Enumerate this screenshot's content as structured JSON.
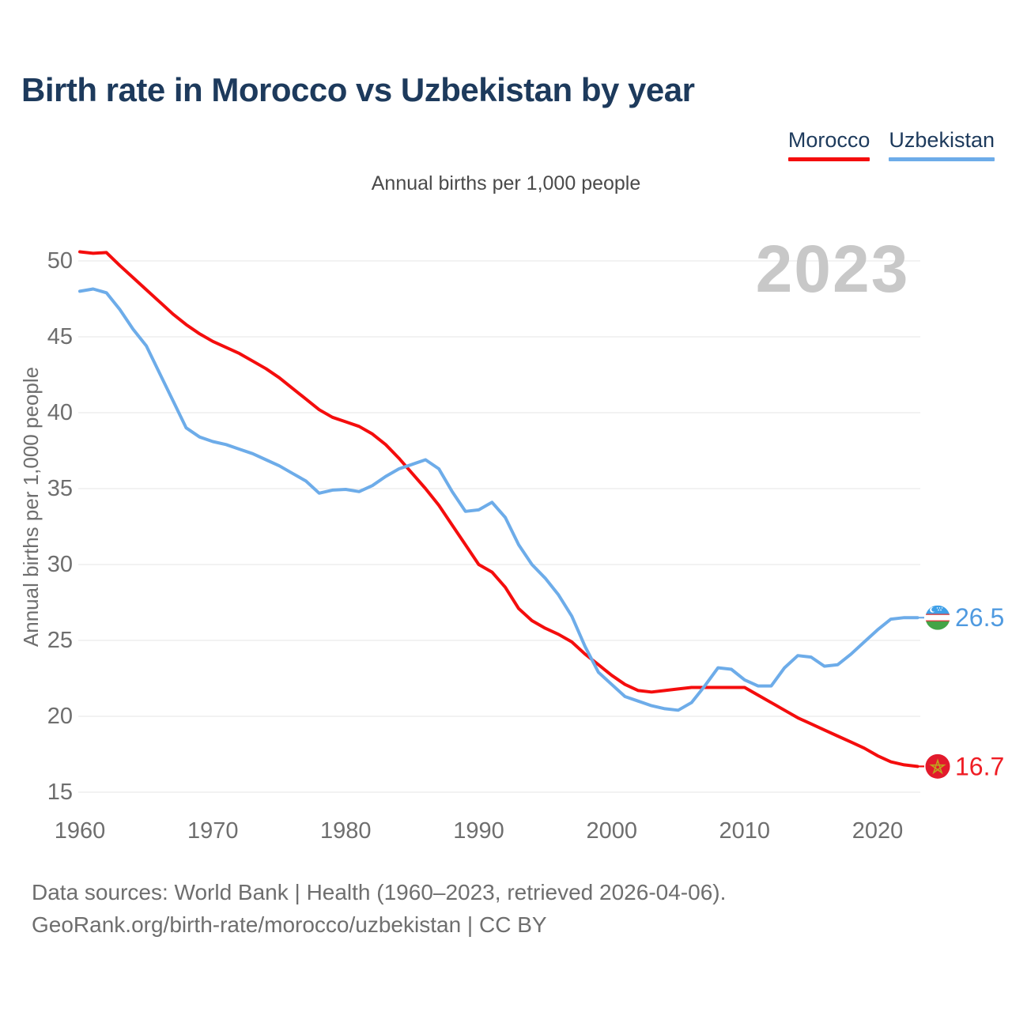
{
  "page": {
    "title": "Birth rate in Morocco vs Uzbekistan by year"
  },
  "subtitle": "Annual births per 1,000 people",
  "legend": [
    {
      "label": "Morocco",
      "color": "#f40d0d"
    },
    {
      "label": "Uzbekistan",
      "color": "#6dace9"
    }
  ],
  "footer": {
    "line1": "Data sources: World Bank | Health (1960–2023, retrieved 2026-04-06).",
    "line2": "GeoRank.org/birth-rate/morocco/uzbekistan | CC BY"
  },
  "chart_data": {
    "type": "line",
    "title": "Birth rate in Morocco vs Uzbekistan by year",
    "subtitle": "Annual births per 1,000 people",
    "ylabel": "Annual births per 1,000 people",
    "xlabel": "",
    "watermark": "2023",
    "grid": true,
    "legend_position": "top-right",
    "ylim": [
      13.5,
      51.5
    ],
    "x_ticks": [
      1960,
      1970,
      1980,
      1990,
      2000,
      2010,
      2020
    ],
    "y_ticks": [
      15,
      20,
      25,
      30,
      35,
      40,
      45,
      50
    ],
    "x": [
      1960,
      1961,
      1962,
      1963,
      1964,
      1965,
      1966,
      1967,
      1968,
      1969,
      1970,
      1971,
      1972,
      1973,
      1974,
      1975,
      1976,
      1977,
      1978,
      1979,
      1980,
      1981,
      1982,
      1983,
      1984,
      1985,
      1986,
      1987,
      1988,
      1989,
      1990,
      1991,
      1992,
      1993,
      1994,
      1995,
      1996,
      1997,
      1998,
      1999,
      2000,
      2001,
      2002,
      2003,
      2004,
      2005,
      2006,
      2007,
      2008,
      2009,
      2010,
      2011,
      2012,
      2013,
      2014,
      2015,
      2016,
      2017,
      2018,
      2019,
      2020,
      2021,
      2022,
      2023
    ],
    "series": [
      {
        "name": "Morocco",
        "color": "#f40d0d",
        "flag": "morocco",
        "end_label": "16.7",
        "end_label_color": "#ef1d24",
        "values": [
          50.6,
          50.5,
          50.55,
          49.7,
          48.9,
          48.1,
          47.3,
          46.5,
          45.8,
          45.2,
          44.7,
          44.3,
          43.9,
          43.4,
          42.9,
          42.3,
          41.6,
          40.9,
          40.2,
          39.7,
          39.4,
          39.1,
          38.6,
          37.9,
          37.0,
          36.0,
          35.0,
          33.9,
          32.6,
          31.3,
          30.0,
          29.5,
          28.5,
          27.1,
          26.3,
          25.8,
          25.4,
          24.9,
          24.1,
          23.4,
          22.7,
          22.1,
          21.7,
          21.6,
          21.7,
          21.8,
          21.9,
          21.9,
          21.9,
          21.9,
          21.9,
          21.4,
          20.9,
          20.4,
          19.9,
          19.5,
          19.1,
          18.7,
          18.3,
          17.9,
          17.4,
          17.0,
          16.8,
          16.7
        ]
      },
      {
        "name": "Uzbekistan",
        "color": "#6dace9",
        "flag": "uzbekistan",
        "end_label": "26.5",
        "end_label_color": "#4f9ae0",
        "values": [
          48.0,
          48.15,
          47.9,
          46.8,
          45.5,
          44.4,
          42.6,
          40.8,
          39.0,
          38.4,
          38.1,
          37.9,
          37.6,
          37.3,
          36.9,
          36.5,
          36.0,
          35.5,
          34.7,
          34.9,
          34.95,
          34.8,
          35.2,
          35.8,
          36.3,
          36.6,
          36.9,
          36.3,
          34.8,
          33.5,
          33.6,
          34.1,
          33.1,
          31.3,
          30.0,
          29.1,
          28.0,
          26.6,
          24.6,
          22.9,
          22.1,
          21.3,
          21.0,
          20.7,
          20.5,
          20.4,
          20.9,
          22.0,
          23.2,
          23.1,
          22.4,
          22.0,
          22.0,
          23.2,
          24.0,
          23.9,
          23.3,
          23.4,
          24.1,
          24.9,
          25.7,
          26.4,
          26.5,
          26.5
        ]
      }
    ],
    "colors": {
      "grid": "#e9e9e9",
      "axis_text": "#6e6e6e",
      "watermark": "#c8c8c8",
      "morocco_flag_red": "#e21a2c",
      "morocco_star_gold": "#bfa21e",
      "uzbek_flag_blue": "#3fa0e8",
      "uzbek_flag_green": "#43a447",
      "uzbek_flag_red": "#d54040"
    }
  }
}
